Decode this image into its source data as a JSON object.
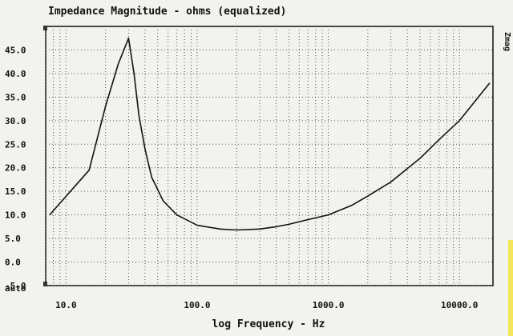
{
  "chart_data": {
    "type": "line",
    "title": "Impedance Magnitude - ohms (equalized)",
    "xlabel": "log Frequency - Hz",
    "ylabel": "",
    "side_label": "Zmag",
    "x_scale": "log",
    "xlim": [
      7,
      18000
    ],
    "ylim": [
      -5,
      50
    ],
    "x_ticks": [
      {
        "value": 10,
        "label": "10.0"
      },
      {
        "value": 100,
        "label": "100.0"
      },
      {
        "value": 1000,
        "label": "1000.0"
      },
      {
        "value": 10000,
        "label": "10000.0"
      }
    ],
    "y_ticks": [
      {
        "value": 45,
        "label": "45.0"
      },
      {
        "value": 40,
        "label": "40.0"
      },
      {
        "value": 35,
        "label": "35.0"
      },
      {
        "value": 30,
        "label": "30.0"
      },
      {
        "value": 25,
        "label": "25.0"
      },
      {
        "value": 20,
        "label": "20.0"
      },
      {
        "value": 15,
        "label": "15.0"
      },
      {
        "value": 10,
        "label": "10.0"
      },
      {
        "value": 5,
        "label": "5.0"
      },
      {
        "value": 0,
        "label": "0.0"
      },
      {
        "value": -5,
        "label": "-5.0"
      }
    ],
    "y_auto_label": "auto",
    "grid": true,
    "series": [
      {
        "color": "#111111",
        "x": [
          7.5,
          15,
          20,
          25,
          30,
          33,
          36,
          40,
          45,
          55,
          70,
          100,
          150,
          200,
          300,
          400,
          500,
          700,
          1000,
          1500,
          2000,
          3000,
          5000,
          7000,
          10000,
          17000
        ],
        "y": [
          10.0,
          19.5,
          33.0,
          42.0,
          47.5,
          40.0,
          31.0,
          24.0,
          18.0,
          13.0,
          10.0,
          7.8,
          7.0,
          6.8,
          7.0,
          7.5,
          8.0,
          9.0,
          10.0,
          12.0,
          14.0,
          17.0,
          22.0,
          26.0,
          30.0,
          38.0
        ]
      }
    ]
  }
}
